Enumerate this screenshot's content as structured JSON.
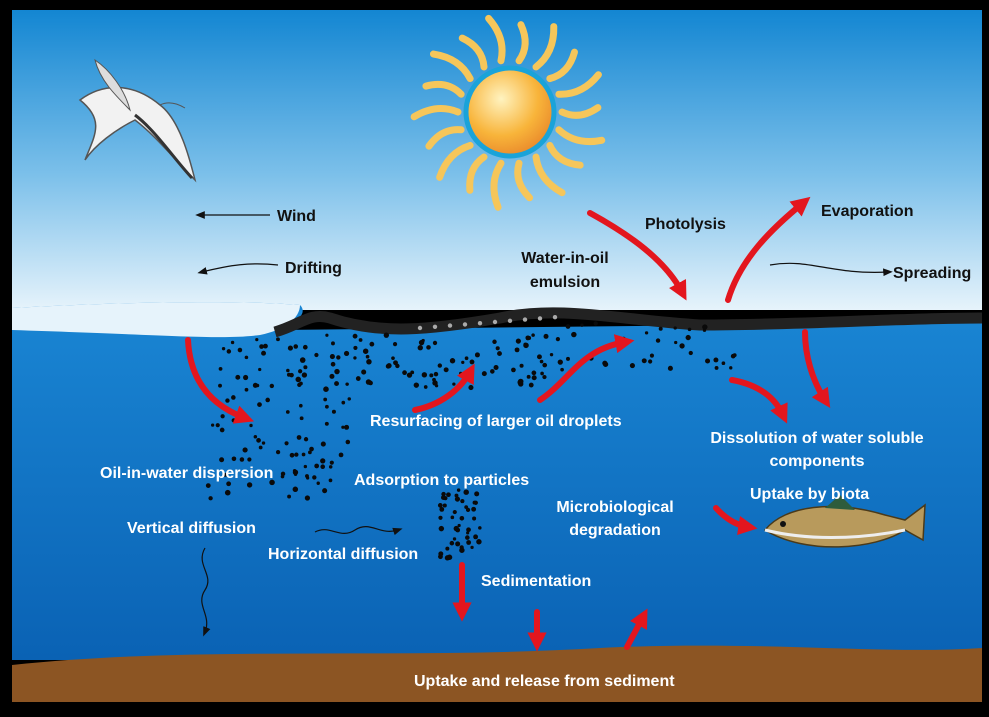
{
  "labels": {
    "wind": "Wind",
    "drifting": "Drifting",
    "water_in_oil_emulsion": [
      "Water-in-oil",
      "emulsion"
    ],
    "photolysis": "Photolysis",
    "evaporation": "Evaporation",
    "spreading": "Spreading",
    "resurfacing": "Resurfacing of larger oil droplets",
    "dissolution": [
      "Dissolution of water soluble",
      "components"
    ],
    "oil_in_water_dispersion": "Oil-in-water dispersion",
    "adsorption": "Adsorption to particles",
    "microbiological_degradation": [
      "Microbiological",
      "degradation"
    ],
    "uptake_by_biota": "Uptake by biota",
    "vertical_diffusion": "Vertical diffusion",
    "horizontal_diffusion": "Horizontal diffusion",
    "sedimentation": "Sedimentation",
    "sediment": "Uptake and release from sediment"
  }
}
